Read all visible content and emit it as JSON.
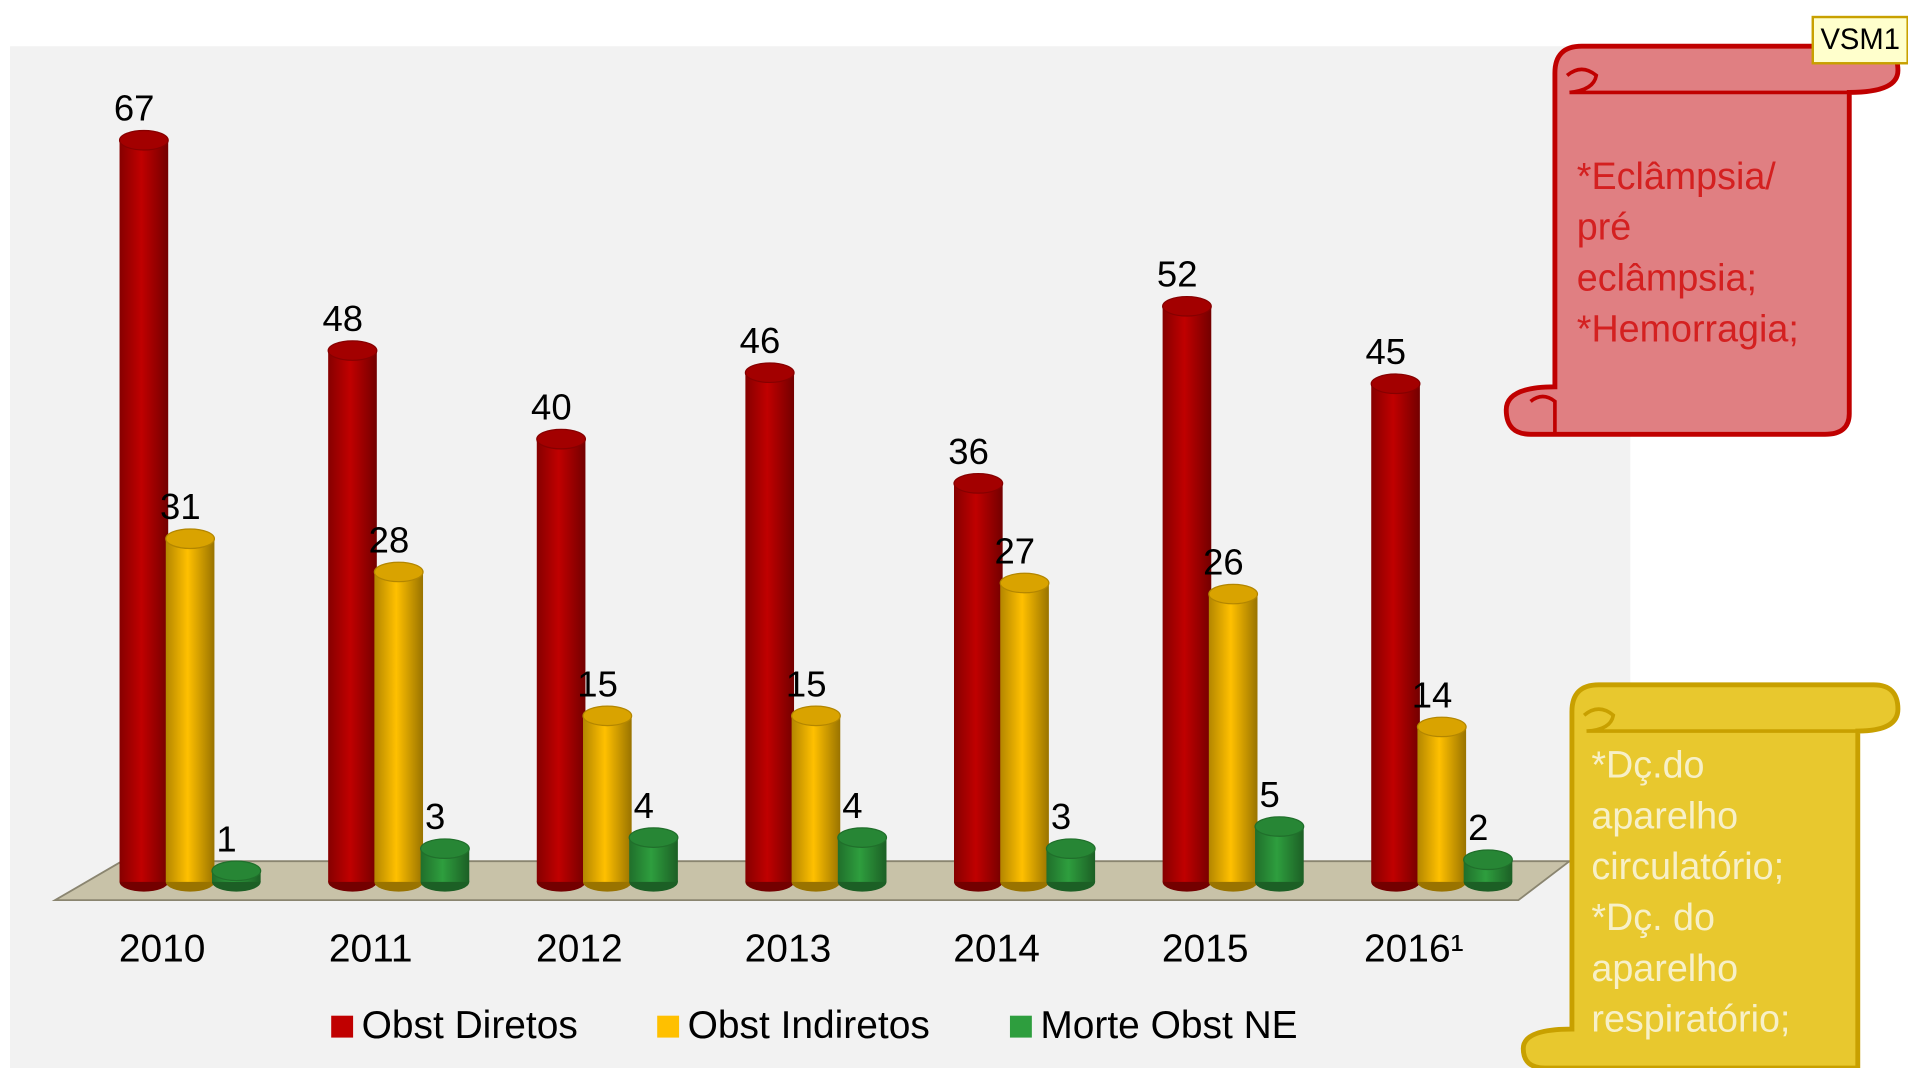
{
  "chart_data": {
    "type": "bar3d",
    "categories": [
      "2010",
      "2011",
      "2012",
      "2013",
      "2014",
      "2015",
      "2016¹"
    ],
    "series": [
      {
        "name": "Obst Diretos",
        "color": "#c00000",
        "values": [
          67,
          48,
          40,
          46,
          36,
          52,
          45
        ]
      },
      {
        "name": "Obst Indiretos",
        "color": "#ffc000",
        "values": [
          31,
          28,
          15,
          15,
          27,
          26,
          14
        ]
      },
      {
        "name": "Morte Obst NE",
        "color": "#2e9e3e",
        "values": [
          1,
          3,
          4,
          4,
          3,
          5,
          2
        ]
      }
    ],
    "annotations": [
      {
        "lines": [
          "*Eclâmpsia/",
          "pré",
          "eclâmpsia;",
          "*Hemorragia;"
        ],
        "color": "#d42020"
      },
      {
        "lines": [
          "*Dç.do",
          "aparelho",
          "circulatório;",
          "*Dç. do",
          "aparelho",
          "respiratório;"
        ],
        "color": "#f7f0c8"
      }
    ],
    "tag": "VSM1"
  }
}
